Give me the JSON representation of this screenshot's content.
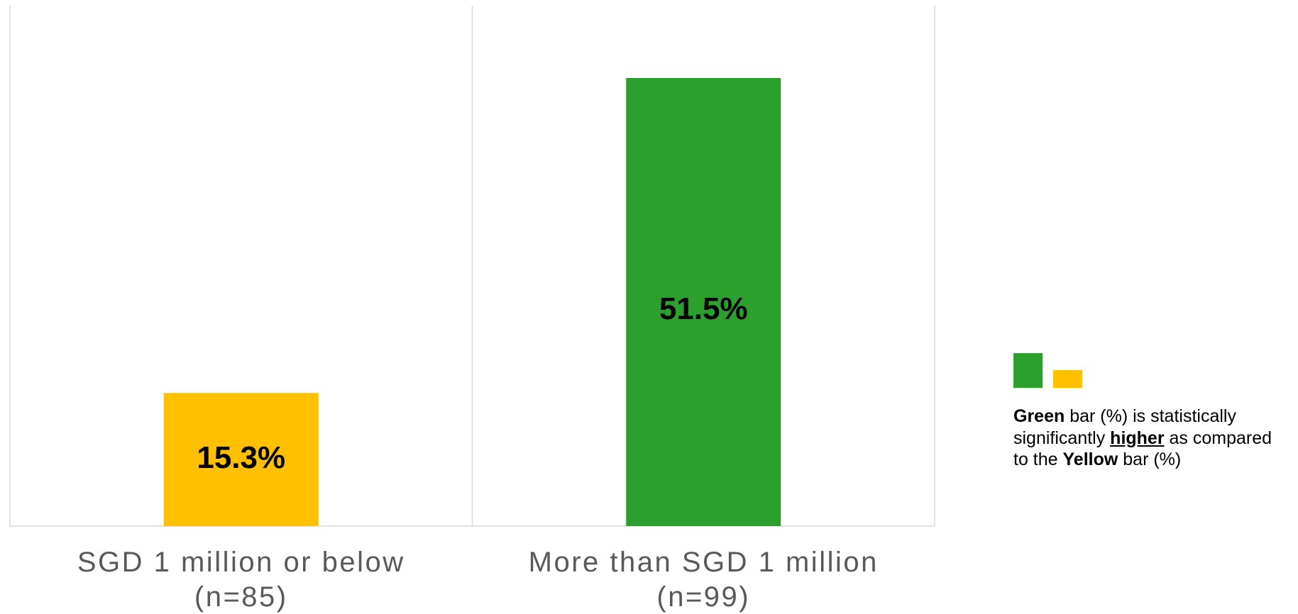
{
  "chart_data": {
    "type": "bar",
    "categories": [
      {
        "line1": "SGD 1 million or below",
        "line2": "(n=85)"
      },
      {
        "line1": "More than SGD 1 million",
        "line2": "(n=99)"
      }
    ],
    "values": [
      15.3,
      51.5
    ],
    "data_labels": [
      "15.3%",
      "51.5%"
    ],
    "bar_colors": [
      "#FFC000",
      "#2CA02C"
    ],
    "ylim": [
      0,
      60
    ],
    "grid": false,
    "category_separators": true
  },
  "legend_note": {
    "swatch_colors": [
      "#2CA02C",
      "#FFC000"
    ],
    "parts": [
      {
        "text": "Green",
        "style": "bold"
      },
      {
        "text": " bar (%) is statistically significantly ",
        "style": "normal"
      },
      {
        "text": "higher",
        "style": "bold-underline"
      },
      {
        "text": " as compared to the ",
        "style": "normal"
      },
      {
        "text": "Yellow",
        "style": "bold"
      },
      {
        "text": " bar (%)",
        "style": "normal"
      }
    ]
  }
}
